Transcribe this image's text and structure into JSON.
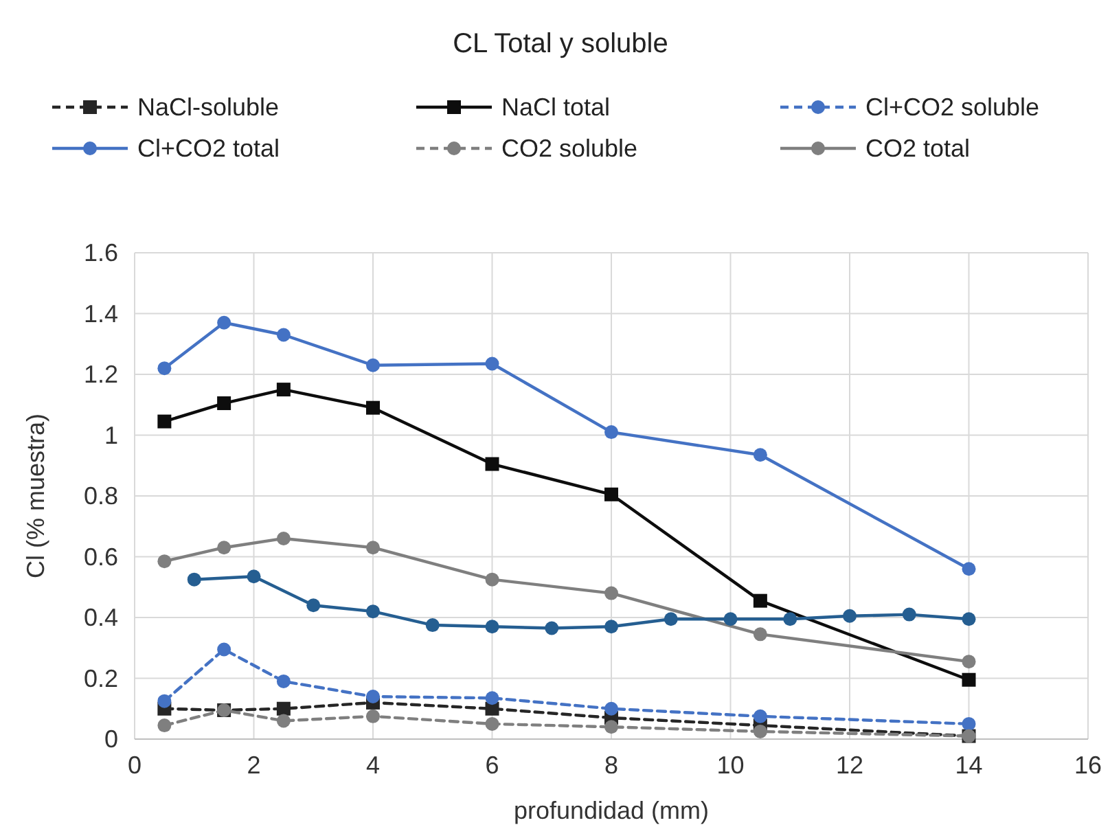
{
  "chart_data": {
    "type": "line",
    "title": "CL Total y soluble",
    "xlabel": "profundidad (mm)",
    "ylabel": "Cl (% muestra)",
    "xlim": [
      0,
      16
    ],
    "xticks": [
      0,
      2,
      4,
      6,
      8,
      10,
      12,
      14,
      16
    ],
    "ylim": [
      0,
      1.6
    ],
    "yticks": [
      0,
      0.2,
      0.4,
      0.6,
      0.8,
      1,
      1.2,
      1.4,
      1.6
    ],
    "grid": true,
    "legend": "top",
    "series": [
      {
        "name": "NaCl-soluble",
        "color": "#262626",
        "marker": "square",
        "line_style": "dashed",
        "x": [
          0.5,
          1.5,
          2.5,
          4,
          6,
          8,
          10.5,
          14
        ],
        "values": [
          0.1,
          0.095,
          0.1,
          0.12,
          0.1,
          0.07,
          0.045,
          0.01
        ]
      },
      {
        "name": "NaCl total",
        "color": "#0d0d0d",
        "marker": "square",
        "line_style": "solid",
        "x": [
          0.5,
          1.5,
          2.5,
          4,
          6,
          8,
          10.5,
          14
        ],
        "values": [
          1.045,
          1.105,
          1.15,
          1.09,
          0.905,
          0.805,
          0.455,
          0.195
        ]
      },
      {
        "name": "Cl+CO2 soluble",
        "color": "#4472c4",
        "marker": "circle",
        "line_style": "dashed",
        "x": [
          0.5,
          1.5,
          2.5,
          4,
          6,
          8,
          10.5,
          14
        ],
        "values": [
          0.125,
          0.295,
          0.19,
          0.14,
          0.135,
          0.1,
          0.075,
          0.05
        ]
      },
      {
        "name": "Cl+CO2 total",
        "color": "#4472c4",
        "marker": "circle",
        "line_style": "solid",
        "x": [
          0.5,
          1.5,
          2.5,
          4,
          6,
          8,
          10.5,
          14
        ],
        "values": [
          1.22,
          1.37,
          1.33,
          1.23,
          1.235,
          1.01,
          0.935,
          0.56
        ]
      },
      {
        "name": "CO2 soluble",
        "color": "#7f7f7f",
        "marker": "circle",
        "line_style": "dashed",
        "x": [
          0.5,
          1.5,
          2.5,
          4,
          6,
          8,
          10.5,
          14
        ],
        "values": [
          0.045,
          0.095,
          0.06,
          0.075,
          0.05,
          0.04,
          0.025,
          0.01
        ]
      },
      {
        "name": "CO2 total",
        "color": "#7f7f7f",
        "marker": "circle",
        "line_style": "solid",
        "x": [
          0.5,
          1.5,
          2.5,
          4,
          6,
          8,
          10.5,
          14
        ],
        "values": [
          0.585,
          0.63,
          0.66,
          0.63,
          0.525,
          0.48,
          0.345,
          0.255
        ]
      },
      {
        "color": "#255e91",
        "marker": "circle",
        "line_style": "solid",
        "x": [
          1,
          2,
          3,
          4,
          5,
          6,
          7,
          8,
          9,
          10,
          11,
          12,
          13,
          14
        ],
        "values": [
          0.525,
          0.535,
          0.44,
          0.42,
          0.375,
          0.37,
          0.365,
          0.37,
          0.395,
          0.395,
          0.395,
          0.405,
          0.41,
          0.395
        ]
      }
    ]
  }
}
